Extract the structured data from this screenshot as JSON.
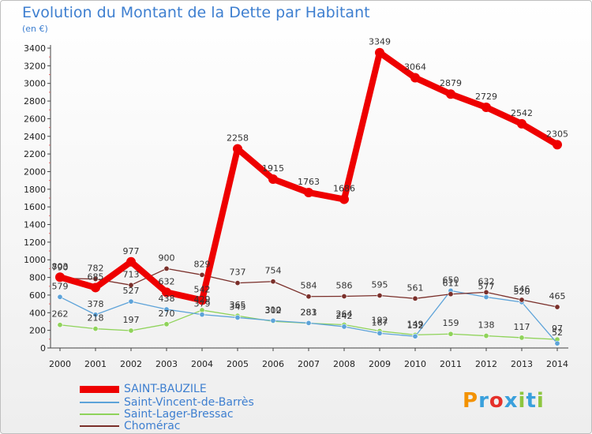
{
  "title": "Evolution du Montant de la Dette par Habitant",
  "subtitle": "(en €)",
  "logo": {
    "text": "Proxiti",
    "colors": [
      "#f39200",
      "#3aa0dc",
      "#e5302a",
      "#3aa0dc",
      "#8dc63f",
      "#3aa0dc",
      "#8dc63f"
    ]
  },
  "chart_data": {
    "type": "line",
    "x": [
      "2000",
      "2001",
      "2002",
      "2003",
      "2004",
      "2005",
      "2006",
      "2007",
      "2008",
      "2009",
      "2010",
      "2011",
      "2012",
      "2013",
      "2014"
    ],
    "ylim": [
      0,
      3400
    ],
    "yticks": [
      0,
      200,
      400,
      600,
      800,
      1000,
      1200,
      1400,
      1600,
      1800,
      2000,
      2200,
      2400,
      2600,
      2800,
      3000,
      3200,
      3400
    ],
    "grid": false,
    "legend_position": "bottom-left",
    "series": [
      {
        "name": "SAINT-BAUZILE",
        "color": "#ee0000",
        "values": [
          803,
          685,
          977,
          632,
          542,
          2258,
          1915,
          1763,
          1686,
          3349,
          3064,
          2879,
          2729,
          2542,
          2305
        ]
      },
      {
        "name": "Saint-Vincent-de-Barrès",
        "color": "#5da3d9",
        "values": [
          579,
          378,
          527,
          438,
          379,
          345,
          310,
          283,
          242,
          167,
          132,
          650,
          577,
          520,
          52
        ]
      },
      {
        "name": "Saint-Lager-Bressac",
        "color": "#8fd35a",
        "values": [
          262,
          218,
          197,
          270,
          429,
          365,
          302,
          281,
          264,
          192,
          149,
          159,
          138,
          117,
          97
        ]
      },
      {
        "name": "Chomérac",
        "color": "#7a2f2a",
        "values": [
          790,
          782,
          713,
          900,
          829,
          737,
          754,
          584,
          586,
          595,
          561,
          611,
          632,
          546,
          465
        ]
      }
    ]
  }
}
